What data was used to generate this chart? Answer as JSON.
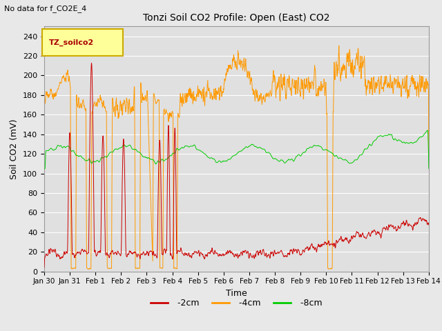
{
  "title": "Tonzi Soil CO2 Profile: Open (East) CO2",
  "subtitle": "No data for f_CO2E_4",
  "ylabel": "Soil CO2 (mV)",
  "xlabel": "Time",
  "legend_label": "TZ_soilco2",
  "ylim": [
    0,
    250
  ],
  "yticks": [
    0,
    20,
    40,
    60,
    80,
    100,
    120,
    140,
    160,
    180,
    200,
    220,
    240
  ],
  "xtick_labels": [
    "Jan 30",
    "Jan 31",
    "Feb 1",
    "Feb 2",
    "Feb 3",
    "Feb 4",
    "Feb 5",
    "Feb 6",
    "Feb 7",
    "Feb 8",
    "Feb 9",
    "Feb 10",
    "Feb 11",
    "Feb 12",
    "Feb 13",
    "Feb 14"
  ],
  "color_2cm": "#cc0000",
  "color_4cm": "#ff9900",
  "color_8cm": "#00cc00",
  "bg_color": "#e0e0e0",
  "grid_color": "#ffffff",
  "legend_box_color": "#ffff99",
  "legend_box_edge": "#ccaa00",
  "fig_facecolor": "#e8e8e8"
}
